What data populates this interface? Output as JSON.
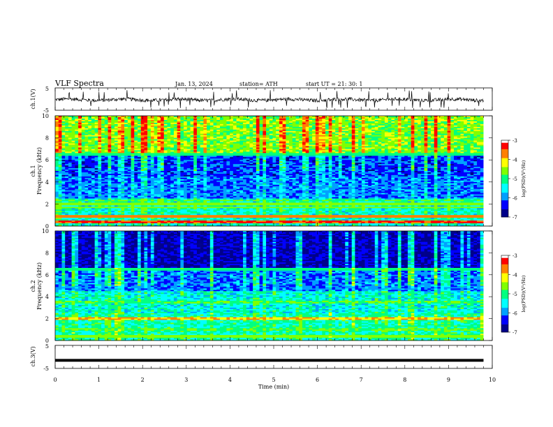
{
  "header": {
    "title": "VLF  Spectra",
    "date": "Jan. 13, 2024",
    "station": "station= ATH",
    "start": "start  UT  =   21: 30: 1"
  },
  "colors": {
    "background": "#ffffff",
    "frame": "#000000",
    "trace": "#000000",
    "colormap": [
      "#000000",
      "#00008b",
      "#0000ff",
      "#00a0ff",
      "#00ffff",
      "#00ff80",
      "#80ff00",
      "#ffff00",
      "#ff8000",
      "#ff0000",
      "#ffffff"
    ]
  },
  "chart_data": [
    {
      "type": "line",
      "name": "ch1-voltage",
      "ylabel": "ch.1(V)",
      "ylim": [
        -5,
        5
      ],
      "yticks": [
        "5",
        "-5"
      ],
      "xlim": [
        0,
        10
      ],
      "description_value": "noisy trace near 0 V with occasional spikes"
    },
    {
      "type": "heatmap",
      "name": "ch1-spectrogram",
      "ylabel": "ch.1\nFrequency (kHz)",
      "ylim": [
        0,
        10
      ],
      "yticks": [
        "0",
        "2",
        "4",
        "6",
        "8",
        "10"
      ],
      "xlim": [
        0,
        9.8
      ],
      "colorbar": {
        "label": "log(PSD)(V²/Hz)",
        "ticks": [
          "-3",
          "-4",
          "-5",
          "-6",
          "-7"
        ],
        "range": [
          -7,
          -3
        ]
      },
      "bands": [
        {
          "f": 0.4,
          "level": -3.4
        },
        {
          "f": 0.9,
          "level": -3.6
        },
        {
          "f": 1.7,
          "level": -4.5
        },
        {
          "f": 2.0,
          "level": -4.6
        },
        {
          "f": 2.3,
          "level": -4.8
        },
        {
          "f": 6.5,
          "level": -5.0
        }
      ]
    },
    {
      "type": "heatmap",
      "name": "ch2-spectrogram",
      "ylabel": "ch.2\nFrequency (kHz)",
      "ylim": [
        0,
        10
      ],
      "yticks": [
        "0",
        "2",
        "4",
        "6",
        "8",
        "10"
      ],
      "xlim": [
        0,
        9.8
      ],
      "colorbar": {
        "label": "log(PSD)(V²/Hz)",
        "ticks": [
          "-3",
          "-4",
          "-5",
          "-6",
          "-7"
        ],
        "range": [
          -7,
          -3
        ]
      },
      "bands": [
        {
          "f": 0.4,
          "level": -4.6
        },
        {
          "f": 1.0,
          "level": -4.8
        },
        {
          "f": 2.0,
          "level": -3.9
        },
        {
          "f": 3.5,
          "level": -4.8
        },
        {
          "f": 6.5,
          "level": -5.0
        }
      ]
    },
    {
      "type": "line",
      "name": "ch3-voltage",
      "ylabel": "ch.3(V)",
      "ylim": [
        -5,
        5
      ],
      "yticks": [
        "5",
        "-5"
      ],
      "xlim": [
        0,
        10
      ],
      "constant_value": -1.5
    }
  ],
  "x_axis": {
    "label": "Time  (min)",
    "ticks": [
      "0",
      "1",
      "2",
      "3",
      "4",
      "5",
      "6",
      "7",
      "8",
      "9",
      "10"
    ]
  }
}
